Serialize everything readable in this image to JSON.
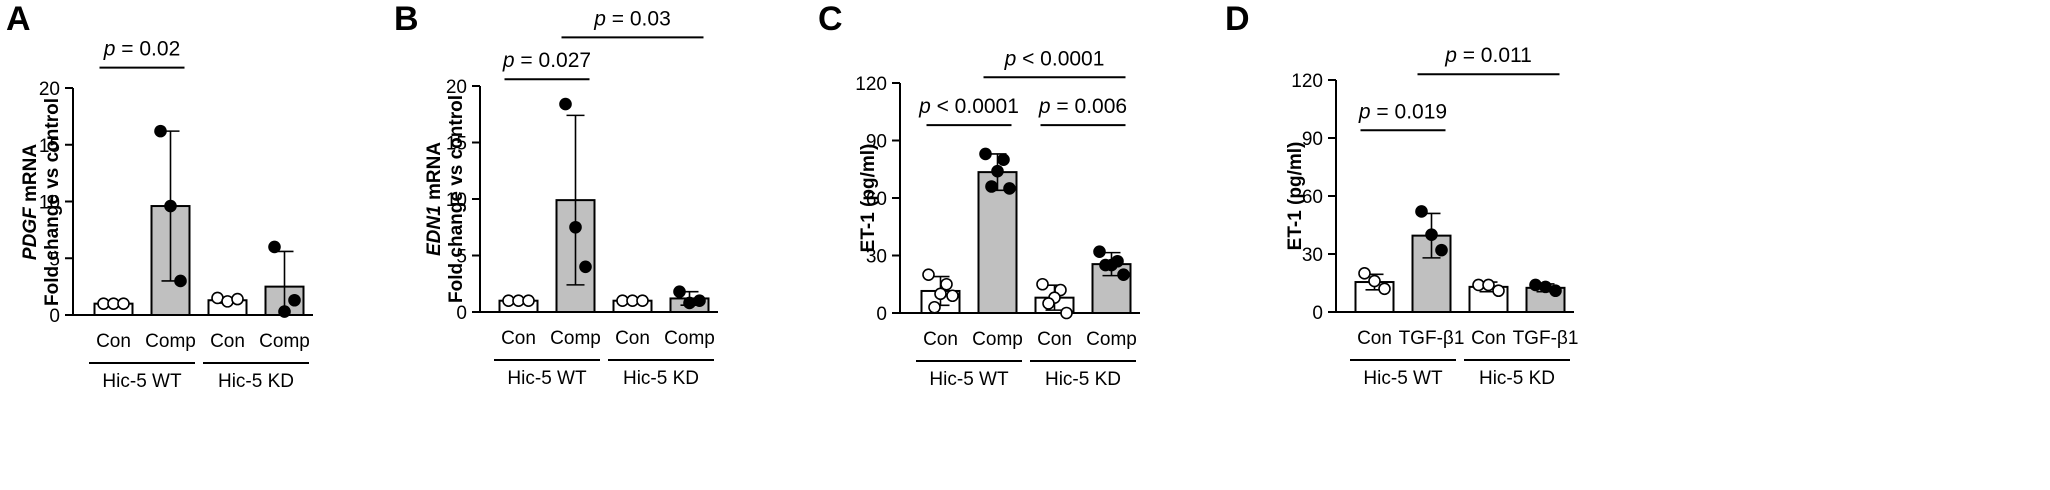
{
  "chart_data": [
    {
      "type": "bar",
      "panel": "A",
      "ylabel_lines": [
        [
          {
            "text": "PDGF",
            "italic": true
          },
          {
            "text": " mRNA",
            "italic": false
          }
        ],
        [
          {
            "text": "Fold change vs control",
            "italic": false
          }
        ]
      ],
      "ylim": [
        0,
        20
      ],
      "yticks": [
        "0",
        "5",
        "10",
        "15",
        "20"
      ],
      "categories": [
        "Con",
        "Comp",
        "Con",
        "Comp"
      ],
      "groups": [
        {
          "label": "Hic-5 WT",
          "span": [
            0,
            1
          ]
        },
        {
          "label": "Hic-5 KD",
          "span": [
            2,
            3
          ]
        }
      ],
      "bar_fill": [
        "#ffffff",
        "#c0c0c0",
        "#ffffff",
        "#c0c0c0"
      ],
      "point_fill": [
        "#ffffff",
        "#000000",
        "#ffffff",
        "#000000"
      ],
      "means": [
        1.0,
        9.6,
        1.3,
        2.5
      ],
      "errors": [
        0.1,
        6.6,
        0.25,
        3.1
      ],
      "points": [
        [
          1.0,
          1.0,
          1.0
        ],
        [
          16.2,
          9.6,
          3.0
        ],
        [
          1.5,
          1.2,
          1.4
        ],
        [
          6.0,
          0.3,
          1.3
        ]
      ],
      "comparisons": [
        {
          "from": 0,
          "to": 1,
          "y": 21.8,
          "label": "p = 0.02"
        }
      ]
    },
    {
      "type": "bar",
      "panel": "B",
      "ylabel_lines": [
        [
          {
            "text": "EDN1",
            "italic": true
          },
          {
            "text": " mRNA",
            "italic": false
          }
        ],
        [
          {
            "text": "Fold change vs control",
            "italic": false
          }
        ]
      ],
      "ylim": [
        0,
        20
      ],
      "yticks": [
        "0",
        "5",
        "10",
        "15",
        "20"
      ],
      "categories": [
        "Con",
        "Comp",
        "Con",
        "Comp"
      ],
      "groups": [
        {
          "label": "Hic-5 WT",
          "span": [
            0,
            1
          ]
        },
        {
          "label": "Hic-5 KD",
          "span": [
            2,
            3
          ]
        }
      ],
      "bar_fill": [
        "#ffffff",
        "#c0c0c0",
        "#ffffff",
        "#c0c0c0"
      ],
      "point_fill": [
        "#ffffff",
        "#000000",
        "#ffffff",
        "#000000"
      ],
      "means": [
        1.0,
        9.9,
        1.0,
        1.2
      ],
      "errors": [
        0.1,
        7.5,
        0.1,
        0.6
      ],
      "points": [
        [
          1.0,
          1.0,
          1.0
        ],
        [
          18.4,
          7.5,
          4.0
        ],
        [
          1.0,
          1.0,
          1.0
        ],
        [
          1.8,
          0.8,
          1.0
        ]
      ],
      "comparisons": [
        {
          "from": 0,
          "to": 1,
          "y": 20.6,
          "label": "p = 0.027"
        },
        {
          "from": 1,
          "to": 3,
          "y": 24.3,
          "label": "p = 0.03"
        }
      ]
    },
    {
      "type": "bar",
      "panel": "C",
      "ylabel_lines": [
        [
          {
            "text": "ET-1 (pg/ml)",
            "italic": false
          }
        ]
      ],
      "ylim": [
        0,
        120
      ],
      "yticks": [
        "0",
        "30",
        "60",
        "90",
        "120"
      ],
      "categories": [
        "Con",
        "Comp",
        "Con",
        "Comp"
      ],
      "groups": [
        {
          "label": "Hic-5 WT",
          "span": [
            0,
            1
          ]
        },
        {
          "label": "Hic-5 KD",
          "span": [
            2,
            3
          ]
        }
      ],
      "bar_fill": [
        "#ffffff",
        "#c0c0c0",
        "#ffffff",
        "#c0c0c0"
      ],
      "point_fill": [
        "#ffffff",
        "#000000",
        "#ffffff",
        "#000000"
      ],
      "means": [
        11.5,
        73.5,
        8.0,
        25.5
      ],
      "errors": [
        7.5,
        9.5,
        6.5,
        6.0
      ],
      "points": [
        [
          20,
          15,
          10,
          3,
          9
        ],
        [
          83,
          80,
          74,
          66,
          65
        ],
        [
          15,
          12,
          8,
          5,
          0
        ],
        [
          32,
          27,
          25,
          25,
          20
        ]
      ],
      "comparisons": [
        {
          "from": 0,
          "to": 1,
          "y": 98,
          "label": "p < 0.0001"
        },
        {
          "from": 2,
          "to": 3,
          "y": 98,
          "label": "p = 0.006"
        },
        {
          "from": 1,
          "to": 3,
          "y": 123,
          "label": "p < 0.0001"
        }
      ]
    },
    {
      "type": "bar",
      "panel": "D",
      "ylabel_lines": [
        [
          {
            "text": "ET-1 (pg/ml)",
            "italic": false
          }
        ]
      ],
      "ylim": [
        0,
        120
      ],
      "yticks": [
        "0",
        "30",
        "60",
        "90",
        "120"
      ],
      "categories": [
        "Con",
        "TGF-β1",
        "Con",
        "TGF-β1"
      ],
      "groups": [
        {
          "label": "Hic-5 WT",
          "span": [
            0,
            1
          ]
        },
        {
          "label": "Hic-5 KD",
          "span": [
            2,
            3
          ]
        }
      ],
      "bar_fill": [
        "#ffffff",
        "#c0c0c0",
        "#ffffff",
        "#c0c0c0"
      ],
      "point_fill": [
        "#ffffff",
        "#000000",
        "#ffffff",
        "#000000"
      ],
      "means": [
        15.5,
        39.5,
        13.0,
        12.5
      ],
      "errors": [
        4.0,
        11.5,
        2.5,
        2.0
      ],
      "points": [
        [
          20,
          16,
          12
        ],
        [
          52,
          40,
          32
        ],
        [
          14,
          14,
          11
        ],
        [
          14,
          13,
          11
        ]
      ],
      "comparisons": [
        {
          "from": 0,
          "to": 1,
          "y": 94,
          "label": "p = 0.019"
        },
        {
          "from": 1,
          "to": 3,
          "y": 123,
          "label": "p = 0.011"
        }
      ]
    }
  ]
}
